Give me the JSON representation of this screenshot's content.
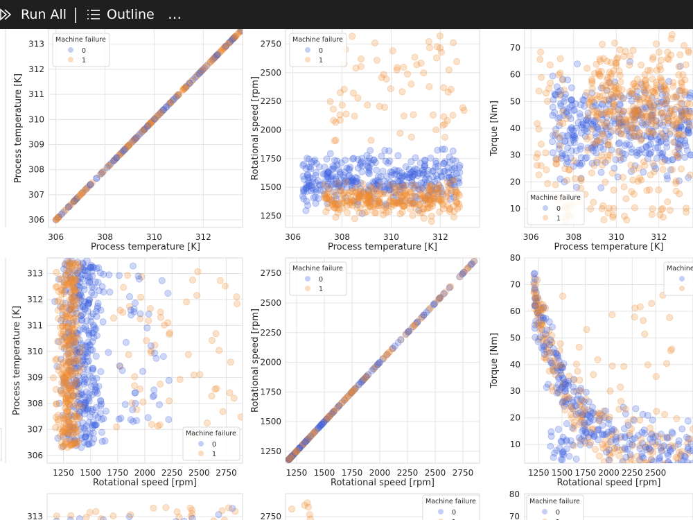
{
  "toolbar": {
    "run_all_label": "Run All",
    "outline_label": "Outline",
    "more_label": "⋯",
    "colors": {
      "background": "#1f1f1f",
      "text": "#ffffff"
    }
  },
  "chart_data": {
    "type": "scatter",
    "legend_title": "Machine failure",
    "classes": [
      {
        "label": "0",
        "color": "#3a5fe0"
      },
      {
        "label": "1",
        "color": "#f08a2e"
      }
    ],
    "panels": [
      {
        "id": "p11",
        "type": "scatter",
        "xlabel": "Process temperature [K]",
        "ylabel": "Process temperature [K]",
        "xticks": [
          306,
          308,
          310,
          312
        ],
        "yticks": [
          306,
          307,
          308,
          309,
          310,
          311,
          312,
          313
        ],
        "xlim": [
          305.7,
          313.6
        ],
        "ylim": [
          305.7,
          313.6
        ],
        "legend": "top-left",
        "pattern": "diagonal"
      },
      {
        "id": "p12",
        "type": "scatter",
        "xlabel": "Process temperature [K]",
        "ylabel": "Rotational speed [rpm]",
        "xticks": [
          306,
          308,
          310,
          312
        ],
        "yticks": [
          1250,
          1500,
          1750,
          2000,
          2250,
          2500,
          2750
        ],
        "xlim": [
          305.7,
          313.6
        ],
        "ylim": [
          1150,
          2880
        ],
        "legend": "top-left",
        "pattern": "cluster"
      },
      {
        "id": "p13",
        "type": "scatter",
        "xlabel": "Process temperature [K]",
        "ylabel": "Torque [Nm]",
        "xticks": [
          306,
          308,
          310,
          312
        ],
        "yticks": [
          10,
          20,
          30,
          40,
          50,
          60,
          70
        ],
        "xlim": [
          305.7,
          313.6
        ],
        "ylim": [
          3,
          77
        ],
        "legend": "bottom-left",
        "pattern": "cluster"
      },
      {
        "id": "p21",
        "type": "scatter",
        "xlabel": "Rotational speed [rpm]",
        "ylabel": "Process temperature [K]",
        "xticks": [
          1250,
          1500,
          1750,
          2000,
          2250,
          2500,
          2750
        ],
        "yticks": [
          306,
          307,
          308,
          309,
          310,
          311,
          312,
          313
        ],
        "xlim": [
          1100,
          2900
        ],
        "ylim": [
          305.7,
          313.6
        ],
        "legend": "bottom-right",
        "pattern": "cluster"
      },
      {
        "id": "p22",
        "type": "scatter",
        "xlabel": "Rotational speed [rpm]",
        "ylabel": "Rotational speed [rpm]",
        "xticks": [
          1250,
          1500,
          1750,
          2000,
          2250,
          2500,
          2750
        ],
        "yticks": [
          1250,
          1500,
          1750,
          2000,
          2250,
          2500,
          2750
        ],
        "xlim": [
          1150,
          2900
        ],
        "ylim": [
          1150,
          2880
        ],
        "legend": "top-left",
        "pattern": "diagonal"
      },
      {
        "id": "p23",
        "type": "scatter",
        "xlabel": "Rotational speed [rpm]",
        "ylabel": "Torque [Nm]",
        "xticks": [
          1250,
          1500,
          1750,
          2000,
          2250,
          2500
        ],
        "yticks": [
          10,
          20,
          30,
          40,
          50,
          60,
          70,
          80
        ],
        "xlim": [
          1100,
          2900
        ],
        "ylim": [
          3,
          80
        ],
        "legend": "top-right",
        "pattern": "curve"
      }
    ],
    "partial_row": {
      "yticks_left": [
        "313"
      ],
      "yticks_mid": [
        "2750"
      ],
      "yticks_right": [
        "80",
        "70"
      ]
    },
    "partial_labels": [
      "1",
      "0",
      "0",
      "1"
    ]
  }
}
